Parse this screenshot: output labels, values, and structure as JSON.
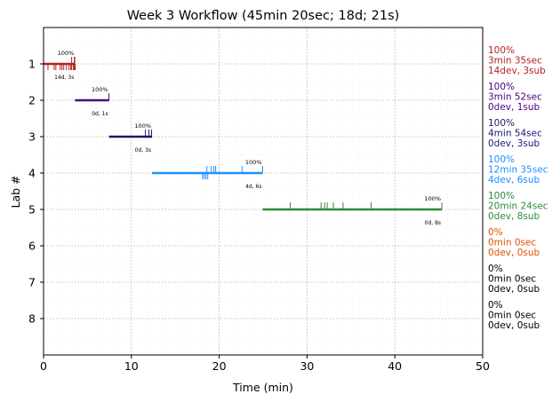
{
  "chart_data": {
    "type": "timeline",
    "title": "Week 3 Workflow (45min 20sec; 18d; 21s)",
    "xlabel": "Time (min)",
    "ylabel": "Lab #",
    "xlim": [
      0,
      50
    ],
    "ylim": [
      0,
      9
    ],
    "x_ticks": [
      0,
      10,
      20,
      30,
      40,
      50
    ],
    "x_tick_labels": [
      "0",
      "10",
      "20",
      "30",
      "40",
      "50"
    ],
    "y_tick_labels": [
      "1",
      "2",
      "3",
      "4",
      "5",
      "6",
      "7",
      "8"
    ],
    "grid": true,
    "labs": [
      {
        "lab": 1,
        "color": "#b22222",
        "start": 0.0,
        "end": 3.58,
        "pct_label": "100%",
        "counts_label": "14d, 3s",
        "dev_ticks": [
          0.5,
          1.4,
          1.9,
          2.3,
          2.6,
          2.9,
          3.2,
          3.4,
          3.5,
          3.55,
          3.6,
          3.1,
          2.1,
          1.2
        ],
        "sub_ticks": [
          3.2,
          3.5,
          3.55
        ],
        "summary": [
          "100%",
          "3min 35sec",
          "14dev, 3sub"
        ]
      },
      {
        "lab": 2,
        "color": "#4b0082",
        "start": 3.58,
        "end": 7.45,
        "pct_label": "100%",
        "counts_label": "0d, 1s",
        "dev_ticks": [],
        "sub_ticks": [
          7.45
        ],
        "summary": [
          "100%",
          "3min 52sec",
          "0dev, 1sub"
        ]
      },
      {
        "lab": 3,
        "color": "#191970",
        "start": 7.45,
        "end": 12.35,
        "pct_label": "100%",
        "counts_label": "0d, 3s",
        "dev_ticks": [],
        "sub_ticks": [
          11.6,
          12.0,
          12.3
        ],
        "summary": [
          "100%",
          "4min 54sec",
          "0dev, 3sub"
        ]
      },
      {
        "lab": 4,
        "color": "#1e90ff",
        "start": 12.35,
        "end": 24.95,
        "pct_label": "100%",
        "counts_label": "4d, 6s",
        "dev_ticks": [
          18.1,
          18.3,
          18.5,
          18.7
        ],
        "sub_ticks": [
          18.6,
          19.1,
          19.4,
          19.6,
          22.6,
          24.95
        ],
        "summary": [
          "100%",
          "12min 35sec",
          "4dev, 6sub"
        ]
      },
      {
        "lab": 5,
        "color": "#2e8b3a",
        "start": 24.95,
        "end": 45.35,
        "pct_label": "100%",
        "counts_label": "0d, 8s",
        "dev_ticks": [],
        "sub_ticks": [
          28.1,
          31.6,
          32.0,
          32.3,
          33.0,
          34.1,
          37.3,
          45.35
        ],
        "summary": [
          "100%",
          "20min 24sec",
          "0dev, 8sub"
        ]
      },
      {
        "lab": 6,
        "color": "#e65100",
        "summary": [
          "0%",
          "0min 0sec",
          "0dev, 0sub"
        ]
      },
      {
        "lab": 7,
        "color": "#000000",
        "summary": [
          "0%",
          "0min 0sec",
          "0dev, 0sub"
        ]
      },
      {
        "lab": 8,
        "color": "#000000",
        "summary": [
          "0%",
          "0min 0sec",
          "0dev, 0sub"
        ]
      }
    ]
  }
}
